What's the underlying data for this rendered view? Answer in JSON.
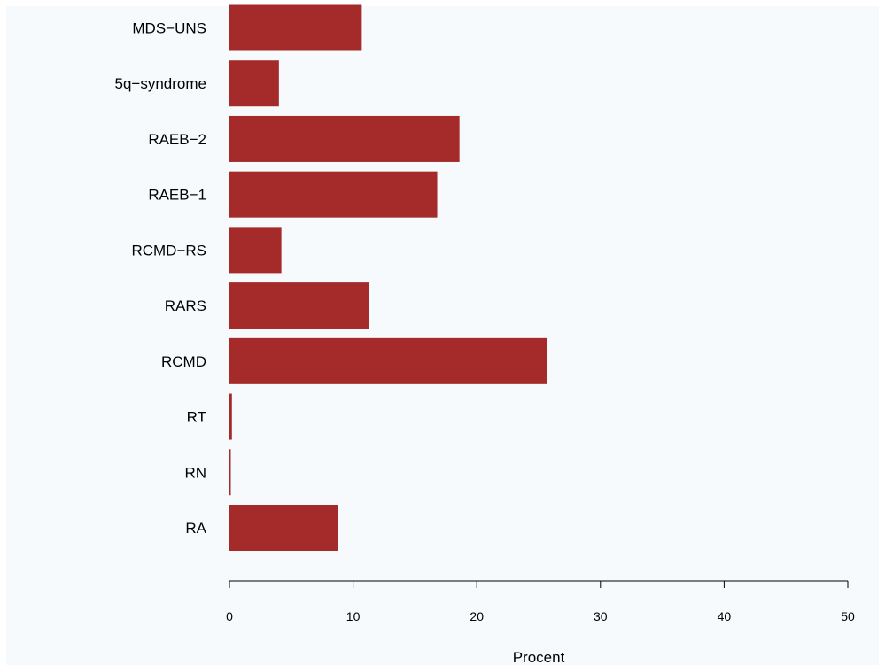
{
  "chart_data": {
    "type": "bar",
    "orientation": "horizontal",
    "categories": [
      "RA",
      "RN",
      "RT",
      "RCMD",
      "RARS",
      "RCMD−RS",
      "RAEB−1",
      "RAEB−2",
      "5q−syndrome",
      "MDS−UNS"
    ],
    "values": [
      8.8,
      0.1,
      0.2,
      25.7,
      11.3,
      4.2,
      16.8,
      18.6,
      4.0,
      10.7
    ],
    "xlabel": "Procent",
    "ylabel": "",
    "xlim": [
      0,
      50
    ],
    "xticks": [
      0,
      10,
      20,
      30,
      40,
      50
    ],
    "colors": {
      "bar": "#a52a2a",
      "background": "#f7fafd"
    },
    "grid": false
  }
}
